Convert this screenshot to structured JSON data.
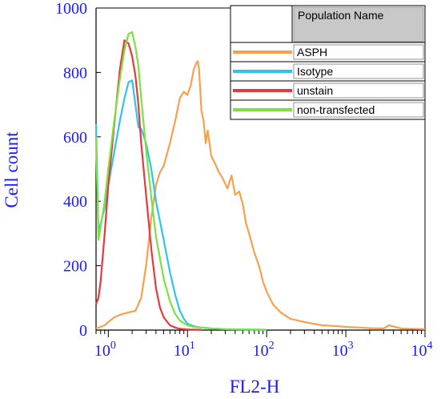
{
  "chart_data": {
    "type": "line",
    "title": "",
    "xlabel": "FL2-H",
    "ylabel": "Cell count",
    "x_scale": "log",
    "xlim": [
      0.7,
      10000
    ],
    "ylim": [
      0,
      1000
    ],
    "x_ticks": [
      {
        "value": 1,
        "base": "10",
        "exp": "0"
      },
      {
        "value": 10,
        "base": "10",
        "exp": "1"
      },
      {
        "value": 100,
        "base": "10",
        "exp": "2"
      },
      {
        "value": 1000,
        "base": "10",
        "exp": "3"
      },
      {
        "value": 10000,
        "base": "10",
        "exp": "4"
      }
    ],
    "y_ticks": [
      0,
      200,
      400,
      600,
      800,
      1000
    ],
    "grid": false,
    "legend": {
      "placement": "top-right",
      "header": "Population Name"
    },
    "series": [
      {
        "name": "ASPH",
        "color": "#f7a14c",
        "x": [
          0.7,
          0.8,
          0.9,
          1.0,
          1.2,
          1.5,
          1.8,
          2.2,
          2.6,
          3.0,
          3.5,
          4.0,
          4.5,
          5.0,
          6.0,
          7.0,
          8.0,
          9.0,
          10.0,
          11.0,
          12.0,
          13.0,
          13.5,
          14.0,
          15.0,
          16.0,
          17.0,
          18.0,
          20.0,
          22.0,
          25.0,
          28.0,
          32.0,
          36.0,
          40.0,
          45.0,
          50.0,
          55.0,
          60.0,
          70.0,
          80.0,
          90.0,
          100.0,
          120.0,
          150.0,
          200.0,
          300.0,
          500.0,
          800.0,
          1000.0,
          1500.0,
          2000.0,
          3000.0,
          3500.0,
          5000.0,
          10000.0
        ],
        "y": [
          5,
          10,
          15,
          25,
          40,
          50,
          55,
          60,
          100,
          200,
          350,
          450,
          490,
          510,
          580,
          650,
          720,
          740,
          730,
          760,
          810,
          830,
          835,
          810,
          680,
          650,
          580,
          620,
          540,
          520,
          490,
          470,
          440,
          480,
          420,
          430,
          390,
          330,
          300,
          240,
          200,
          150,
          120,
          80,
          55,
          35,
          25,
          15,
          12,
          10,
          8,
          6,
          5,
          15,
          5,
          3
        ]
      },
      {
        "name": "Isotype",
        "color": "#2ec4ef",
        "x": [
          0.7,
          0.75,
          0.8,
          0.9,
          1.0,
          1.2,
          1.4,
          1.6,
          1.8,
          2.0,
          2.2,
          2.4,
          2.6,
          3.0,
          3.5,
          4.0,
          5.0,
          6.0,
          7.0,
          8.0,
          9.0,
          10.0,
          12.0,
          15.0,
          20.0,
          30.0,
          50.0,
          100.0
        ],
        "y": [
          640,
          300,
          330,
          380,
          450,
          560,
          650,
          720,
          770,
          775,
          700,
          630,
          625,
          580,
          500,
          400,
          280,
          180,
          110,
          60,
          35,
          20,
          12,
          8,
          5,
          3,
          2,
          1
        ]
      },
      {
        "name": "unstain",
        "color": "#e8383d",
        "x": [
          0.7,
          0.75,
          0.8,
          0.9,
          1.0,
          1.2,
          1.4,
          1.6,
          1.8,
          2.0,
          2.2,
          2.4,
          2.6,
          3.0,
          3.5,
          4.0,
          4.5,
          5.0,
          6.0,
          7.0,
          8.0,
          10.0,
          15.0
        ],
        "y": [
          80,
          100,
          150,
          300,
          450,
          650,
          810,
          900,
          890,
          850,
          790,
          700,
          580,
          420,
          250,
          130,
          70,
          40,
          15,
          8,
          4,
          2,
          1
        ]
      },
      {
        "name": "non-transfected",
        "color": "#7be23f",
        "x": [
          0.7,
          0.75,
          0.8,
          0.9,
          1.0,
          1.2,
          1.4,
          1.6,
          1.8,
          2.0,
          2.2,
          2.4,
          2.6,
          3.0,
          3.5,
          4.0,
          5.0,
          6.0,
          7.0,
          8.0,
          10.0,
          12.0,
          15.0,
          20.0,
          30.0,
          50.0,
          100.0
        ],
        "y": [
          600,
          280,
          320,
          400,
          500,
          660,
          780,
          870,
          920,
          925,
          880,
          820,
          720,
          560,
          410,
          290,
          160,
          90,
          50,
          30,
          15,
          10,
          8,
          5,
          3,
          2,
          1
        ]
      }
    ]
  }
}
